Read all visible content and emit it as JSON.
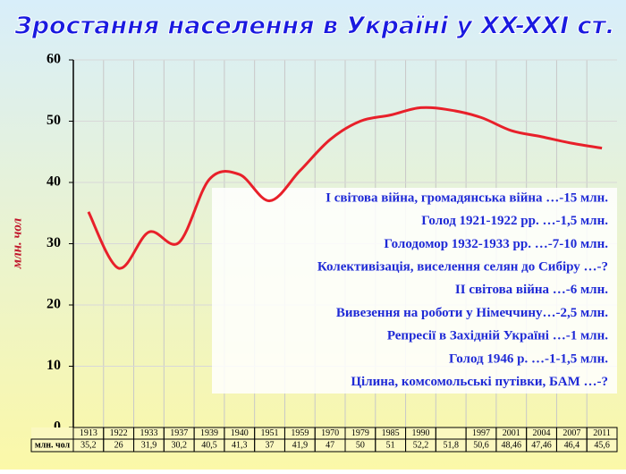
{
  "chart_data": {
    "type": "line",
    "title": "Зростання населення в Україні у XX-XXI ст.",
    "y_label": "млн. чол",
    "categories": [
      "1913",
      "1922",
      "1933",
      "1937",
      "1939",
      "1940",
      "1951",
      "1959",
      "1970",
      "1979",
      "1985",
      "1990",
      null,
      "1997",
      "2001",
      "2004",
      "2007",
      "2011"
    ],
    "series": [
      {
        "name": "млн. чол",
        "color": "#e8202a",
        "values": [
          35.2,
          26,
          31.9,
          30.2,
          40.5,
          41.3,
          37,
          41.9,
          47,
          50,
          51,
          52.2,
          51.8,
          50.6,
          48.46,
          47.46,
          46.4,
          45.6
        ],
        "value_labels": [
          "35,2",
          "26",
          "31,9",
          "30,2",
          "40,5",
          "41,3",
          "37",
          "41,9",
          "47",
          "50",
          "51",
          "52,2",
          "51,8",
          "50,6",
          "48,46",
          "47,46",
          "46,4",
          "45,6"
        ]
      }
    ],
    "ylim": [
      0,
      60
    ],
    "yticks": [
      0,
      10,
      20,
      30,
      40,
      50,
      60
    ],
    "grid": true,
    "annotations": [
      "І світова війна, громадянська війна …-15 млн.",
      "Голод 1921-1922 рр. …-1,5 млн.",
      "Голодомор 1932-1933 рр. …-7-10 млн.",
      "Колективізація, виселення селян до Сибіру …-?",
      "ІІ світова війна …-6 млн.",
      "Вивезення на роботи у Німеччину…-2,5 млн.",
      "Репресії в Західній Україні …-1 млн.",
      "Голод 1946 р. …-1-1,5 млн.",
      "Цілина, комсомольські путівки, БАМ …-?"
    ]
  }
}
